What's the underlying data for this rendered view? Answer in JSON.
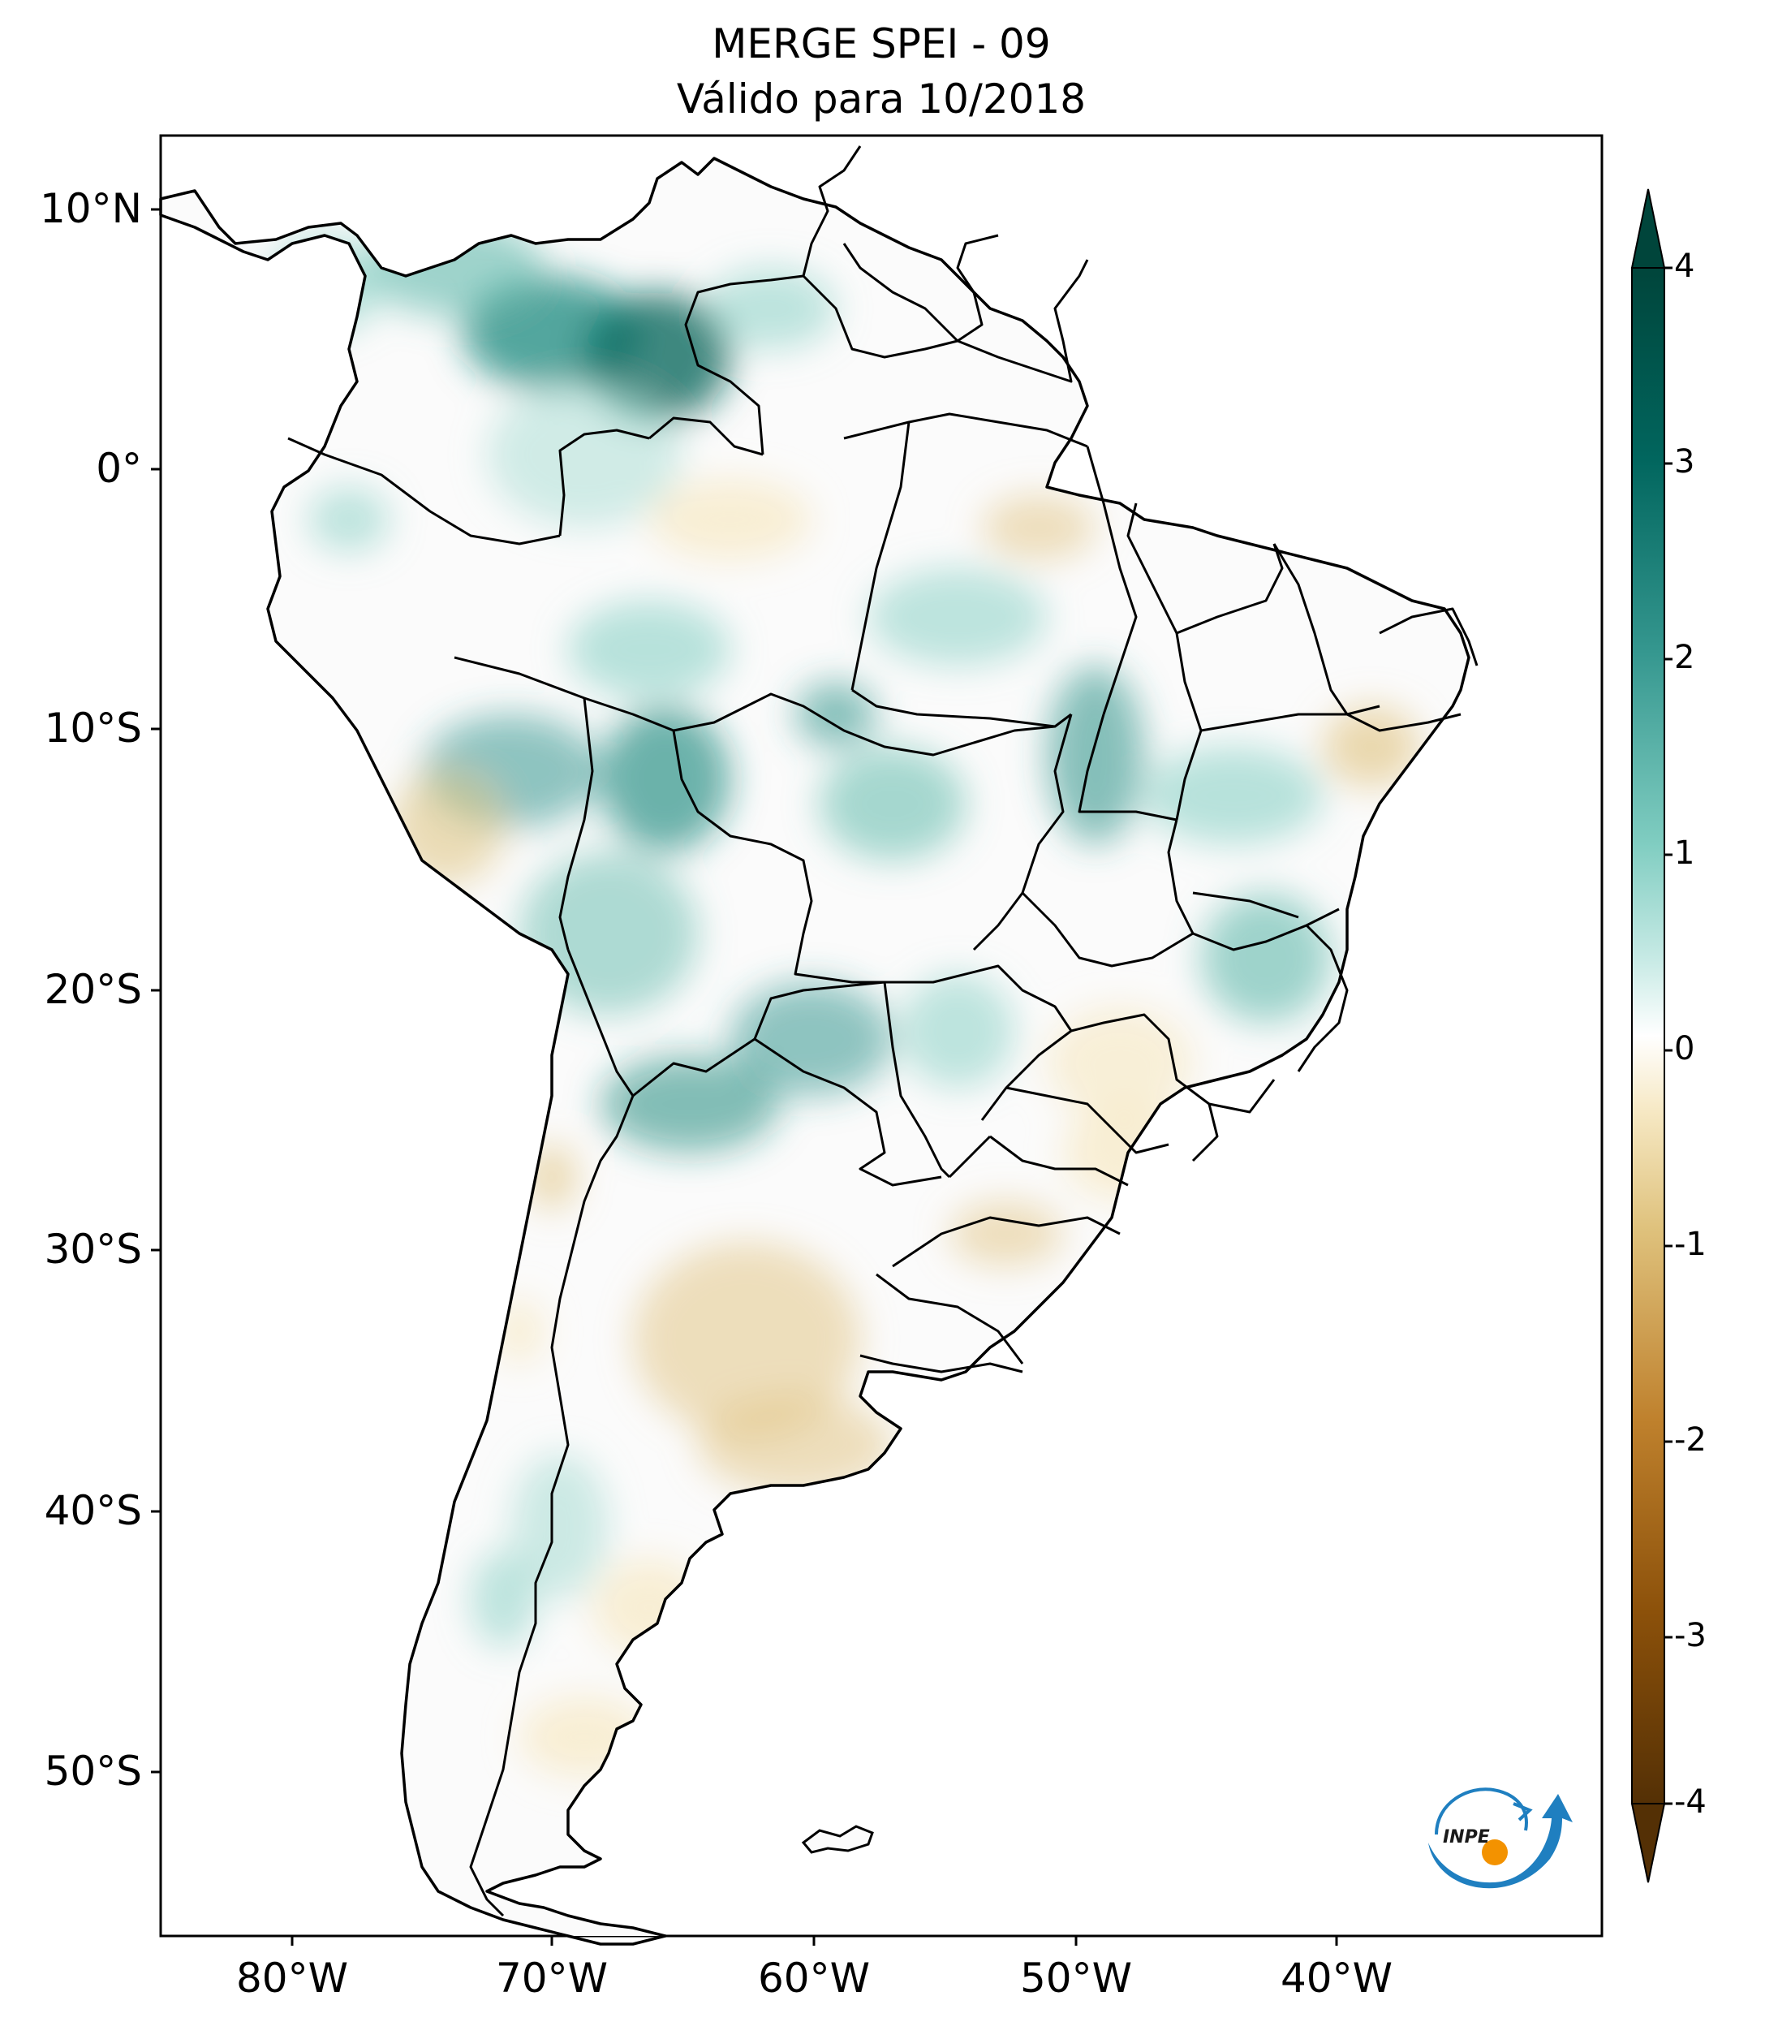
{
  "title": {
    "line1": "MERGE   SPEI - 09",
    "line2": "Válido para 10/2018"
  },
  "axes": {
    "lat_ticks": [
      "10°N",
      "0°",
      "10°S",
      "20°S",
      "30°S",
      "40°S",
      "50°S"
    ],
    "lon_ticks": [
      "80°W",
      "70°W",
      "60°W",
      "50°W",
      "40°W"
    ]
  },
  "colorbar": {
    "ticks": [
      "4",
      "3",
      "2",
      "1",
      "0",
      "-1",
      "-2",
      "-3",
      "-4"
    ],
    "colors": {
      "wet_max": "#00453b",
      "wet_mid": "#35978f",
      "wet_light": "#c7eae5",
      "neutral": "#ffffff",
      "dry_light": "#f6e8c3",
      "dry_mid": "#bf812d",
      "dry_max": "#543005"
    }
  },
  "logo": {
    "text": "INPE",
    "color": "#1f7fc0",
    "accent": "#f39200"
  }
}
